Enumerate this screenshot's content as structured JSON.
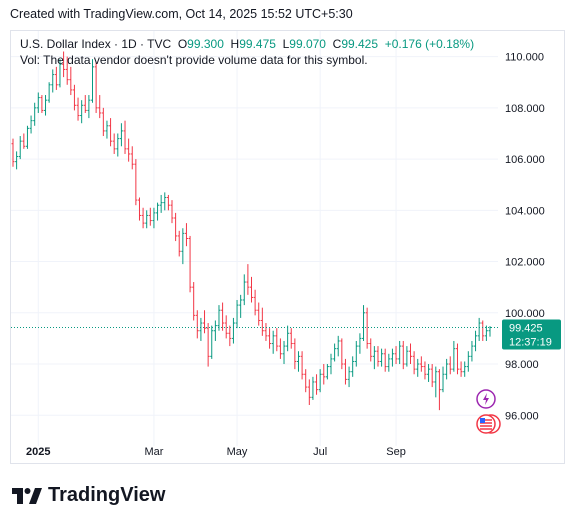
{
  "caption": "Created with TradingView.com, Oct 14, 2025 15:52 UTC+5:30",
  "legend": {
    "symbol": "U.S. Dollar Index · 1D · TVC",
    "o_label": "O",
    "o_value": "99.300",
    "h_label": "H",
    "h_value": "99.475",
    "l_label": "L",
    "l_value": "99.070",
    "c_label": "C",
    "c_value": "99.425",
    "change": "+0.176 (+0.18%)",
    "vol_note": "Vol: The data vendor doesn't provide volume data for this symbol."
  },
  "price_tag": {
    "price": "99.425",
    "countdown": "12:37:19"
  },
  "watermark": {
    "text": "TradingView"
  },
  "icons": [
    "flash-icon",
    "us-flag-icon"
  ],
  "colors": {
    "up": "#089981",
    "down": "#f23645",
    "price_tag": "#089981",
    "grid": "#f0f3fa"
  },
  "chart_data": {
    "type": "ohlc",
    "title": "U.S. Dollar Index · 1D · TVC",
    "ylim": [
      94.8,
      111.0
    ],
    "y_ticks": [
      "96.000",
      "98.000",
      "100.000",
      "102.000",
      "104.000",
      "106.000",
      "108.000",
      "110.000"
    ],
    "x_ticks": [
      "2025",
      "Mar",
      "May",
      "Jul",
      "Sep"
    ],
    "grid": true,
    "last_price": 99.425,
    "series": [
      {
        "bars": [
          {
            "o": 106.6,
            "h": 106.8,
            "l": 105.7,
            "c": 105.9
          },
          {
            "o": 105.9,
            "h": 106.3,
            "l": 105.6,
            "c": 106.1
          },
          {
            "o": 106.1,
            "h": 106.9,
            "l": 106.0,
            "c": 106.7
          },
          {
            "o": 106.7,
            "h": 107.0,
            "l": 106.4,
            "c": 106.5
          },
          {
            "o": 106.5,
            "h": 107.3,
            "l": 106.4,
            "c": 107.2
          },
          {
            "o": 107.2,
            "h": 107.7,
            "l": 107.0,
            "c": 107.5
          },
          {
            "o": 107.5,
            "h": 108.2,
            "l": 107.3,
            "c": 108.0
          },
          {
            "o": 108.0,
            "h": 108.6,
            "l": 107.8,
            "c": 108.4
          },
          {
            "o": 108.4,
            "h": 108.5,
            "l": 107.8,
            "c": 107.9
          },
          {
            "o": 107.9,
            "h": 108.5,
            "l": 107.7,
            "c": 108.3
          },
          {
            "o": 108.3,
            "h": 109.0,
            "l": 108.2,
            "c": 108.9
          },
          {
            "o": 108.9,
            "h": 109.5,
            "l": 108.6,
            "c": 109.3
          },
          {
            "o": 109.3,
            "h": 109.6,
            "l": 108.7,
            "c": 108.9
          },
          {
            "o": 108.9,
            "h": 109.9,
            "l": 108.8,
            "c": 109.7
          },
          {
            "o": 109.7,
            "h": 110.2,
            "l": 109.2,
            "c": 109.5
          },
          {
            "o": 109.5,
            "h": 110.0,
            "l": 108.9,
            "c": 109.1
          },
          {
            "o": 109.1,
            "h": 109.6,
            "l": 108.5,
            "c": 108.7
          },
          {
            "o": 108.7,
            "h": 108.9,
            "l": 107.9,
            "c": 108.1
          },
          {
            "o": 108.1,
            "h": 108.4,
            "l": 107.5,
            "c": 107.7
          },
          {
            "o": 107.7,
            "h": 108.3,
            "l": 107.4,
            "c": 108.1
          },
          {
            "o": 108.1,
            "h": 108.5,
            "l": 107.8,
            "c": 107.9
          },
          {
            "o": 107.9,
            "h": 108.5,
            "l": 107.6,
            "c": 108.3
          },
          {
            "o": 108.3,
            "h": 109.9,
            "l": 108.2,
            "c": 109.6
          },
          {
            "o": 109.6,
            "h": 109.8,
            "l": 107.8,
            "c": 108.0
          },
          {
            "o": 108.0,
            "h": 108.5,
            "l": 107.6,
            "c": 107.8
          },
          {
            "o": 107.8,
            "h": 108.0,
            "l": 106.9,
            "c": 107.1
          },
          {
            "o": 107.1,
            "h": 107.5,
            "l": 106.8,
            "c": 107.3
          },
          {
            "o": 107.3,
            "h": 107.6,
            "l": 106.5,
            "c": 106.7
          },
          {
            "o": 106.7,
            "h": 107.0,
            "l": 106.2,
            "c": 106.4
          },
          {
            "o": 106.4,
            "h": 107.0,
            "l": 106.1,
            "c": 106.8
          },
          {
            "o": 106.8,
            "h": 107.4,
            "l": 106.5,
            "c": 107.1
          },
          {
            "o": 107.1,
            "h": 107.5,
            "l": 106.2,
            "c": 106.4
          },
          {
            "o": 106.4,
            "h": 106.8,
            "l": 105.9,
            "c": 106.2
          },
          {
            "o": 106.2,
            "h": 106.5,
            "l": 105.6,
            "c": 105.8
          },
          {
            "o": 105.8,
            "h": 106.0,
            "l": 104.2,
            "c": 104.4
          },
          {
            "o": 104.4,
            "h": 104.5,
            "l": 103.6,
            "c": 103.8
          },
          {
            "o": 103.8,
            "h": 104.1,
            "l": 103.3,
            "c": 103.5
          },
          {
            "o": 103.5,
            "h": 104.0,
            "l": 103.3,
            "c": 103.8
          },
          {
            "o": 103.8,
            "h": 104.1,
            "l": 103.4,
            "c": 103.6
          },
          {
            "o": 103.6,
            "h": 104.1,
            "l": 103.3,
            "c": 103.9
          },
          {
            "o": 103.9,
            "h": 104.3,
            "l": 103.6,
            "c": 104.2
          },
          {
            "o": 104.2,
            "h": 104.6,
            "l": 103.9,
            "c": 104.3
          },
          {
            "o": 104.3,
            "h": 104.7,
            "l": 104.0,
            "c": 104.5
          },
          {
            "o": 104.5,
            "h": 104.6,
            "l": 104.0,
            "c": 104.2
          },
          {
            "o": 104.2,
            "h": 104.4,
            "l": 103.5,
            "c": 103.7
          },
          {
            "o": 103.7,
            "h": 103.9,
            "l": 102.8,
            "c": 103.0
          },
          {
            "o": 103.0,
            "h": 103.2,
            "l": 102.2,
            "c": 102.4
          },
          {
            "o": 102.4,
            "h": 103.3,
            "l": 101.9,
            "c": 103.1
          },
          {
            "o": 103.1,
            "h": 103.5,
            "l": 102.6,
            "c": 102.9
          },
          {
            "o": 102.9,
            "h": 103.0,
            "l": 100.8,
            "c": 101.0
          },
          {
            "o": 101.0,
            "h": 101.2,
            "l": 99.7,
            "c": 99.9
          },
          {
            "o": 99.9,
            "h": 100.1,
            "l": 99.0,
            "c": 99.3
          },
          {
            "o": 99.3,
            "h": 99.8,
            "l": 98.9,
            "c": 99.6
          },
          {
            "o": 99.6,
            "h": 100.1,
            "l": 99.2,
            "c": 99.4
          },
          {
            "o": 99.4,
            "h": 99.6,
            "l": 97.9,
            "c": 98.3
          },
          {
            "o": 98.3,
            "h": 99.5,
            "l": 98.2,
            "c": 99.3
          },
          {
            "o": 99.3,
            "h": 99.7,
            "l": 98.9,
            "c": 99.5
          },
          {
            "o": 99.5,
            "h": 100.3,
            "l": 99.3,
            "c": 100.1
          },
          {
            "o": 100.1,
            "h": 100.4,
            "l": 99.3,
            "c": 99.6
          },
          {
            "o": 99.6,
            "h": 99.9,
            "l": 99.0,
            "c": 99.2
          },
          {
            "o": 99.2,
            "h": 99.5,
            "l": 98.7,
            "c": 99.0
          },
          {
            "o": 99.0,
            "h": 99.8,
            "l": 98.8,
            "c": 99.6
          },
          {
            "o": 99.6,
            "h": 100.5,
            "l": 99.4,
            "c": 100.3
          },
          {
            "o": 100.3,
            "h": 100.7,
            "l": 99.8,
            "c": 100.5
          },
          {
            "o": 100.5,
            "h": 101.5,
            "l": 100.3,
            "c": 101.2
          },
          {
            "o": 101.2,
            "h": 101.9,
            "l": 100.7,
            "c": 101.0
          },
          {
            "o": 101.0,
            "h": 101.4,
            "l": 100.4,
            "c": 100.6
          },
          {
            "o": 100.6,
            "h": 100.9,
            "l": 99.9,
            "c": 100.1
          },
          {
            "o": 100.1,
            "h": 100.4,
            "l": 99.5,
            "c": 99.7
          },
          {
            "o": 99.7,
            "h": 100.2,
            "l": 99.1,
            "c": 99.3
          },
          {
            "o": 99.3,
            "h": 99.6,
            "l": 98.9,
            "c": 99.1
          },
          {
            "o": 99.1,
            "h": 99.4,
            "l": 98.6,
            "c": 98.8
          },
          {
            "o": 98.8,
            "h": 99.3,
            "l": 98.4,
            "c": 99.1
          },
          {
            "o": 99.1,
            "h": 99.4,
            "l": 98.5,
            "c": 98.7
          },
          {
            "o": 98.7,
            "h": 99.0,
            "l": 98.2,
            "c": 98.4
          },
          {
            "o": 98.4,
            "h": 98.9,
            "l": 98.0,
            "c": 98.7
          },
          {
            "o": 98.7,
            "h": 99.5,
            "l": 98.5,
            "c": 99.2
          },
          {
            "o": 99.2,
            "h": 99.4,
            "l": 98.6,
            "c": 98.8
          },
          {
            "o": 98.8,
            "h": 99.0,
            "l": 97.8,
            "c": 98.1
          },
          {
            "o": 98.1,
            "h": 98.5,
            "l": 97.7,
            "c": 98.3
          },
          {
            "o": 98.3,
            "h": 98.5,
            "l": 97.4,
            "c": 97.6
          },
          {
            "o": 97.6,
            "h": 97.8,
            "l": 96.9,
            "c": 97.1
          },
          {
            "o": 97.1,
            "h": 97.4,
            "l": 96.4,
            "c": 96.7
          },
          {
            "o": 96.7,
            "h": 97.5,
            "l": 96.6,
            "c": 97.3
          },
          {
            "o": 97.3,
            "h": 97.6,
            "l": 96.8,
            "c": 97.0
          },
          {
            "o": 97.0,
            "h": 97.8,
            "l": 96.9,
            "c": 97.6
          },
          {
            "o": 97.6,
            "h": 98.0,
            "l": 97.2,
            "c": 97.5
          },
          {
            "o": 97.5,
            "h": 98.0,
            "l": 97.4,
            "c": 97.9
          },
          {
            "o": 97.9,
            "h": 98.4,
            "l": 97.6,
            "c": 98.2
          },
          {
            "o": 98.2,
            "h": 98.8,
            "l": 98.1,
            "c": 98.6
          },
          {
            "o": 98.6,
            "h": 99.1,
            "l": 98.3,
            "c": 98.9
          },
          {
            "o": 98.9,
            "h": 99.0,
            "l": 97.8,
            "c": 98.0
          },
          {
            "o": 98.0,
            "h": 98.2,
            "l": 97.2,
            "c": 97.4
          },
          {
            "o": 97.4,
            "h": 97.9,
            "l": 97.1,
            "c": 97.7
          },
          {
            "o": 97.7,
            "h": 98.3,
            "l": 97.5,
            "c": 98.1
          },
          {
            "o": 98.1,
            "h": 98.9,
            "l": 97.9,
            "c": 98.7
          },
          {
            "o": 98.7,
            "h": 99.2,
            "l": 98.4,
            "c": 99.0
          },
          {
            "o": 99.0,
            "h": 100.3,
            "l": 98.9,
            "c": 100.0
          },
          {
            "o": 100.0,
            "h": 100.2,
            "l": 98.6,
            "c": 98.8
          },
          {
            "o": 98.8,
            "h": 99.0,
            "l": 98.1,
            "c": 98.3
          },
          {
            "o": 98.3,
            "h": 98.7,
            "l": 97.8,
            "c": 98.5
          },
          {
            "o": 98.5,
            "h": 98.7,
            "l": 97.9,
            "c": 98.1
          },
          {
            "o": 98.1,
            "h": 98.6,
            "l": 97.9,
            "c": 98.4
          },
          {
            "o": 98.4,
            "h": 98.6,
            "l": 97.7,
            "c": 97.9
          },
          {
            "o": 97.9,
            "h": 98.4,
            "l": 97.7,
            "c": 98.2
          },
          {
            "o": 98.2,
            "h": 98.6,
            "l": 97.9,
            "c": 98.4
          },
          {
            "o": 98.4,
            "h": 98.7,
            "l": 98.0,
            "c": 98.2
          },
          {
            "o": 98.2,
            "h": 98.9,
            "l": 98.0,
            "c": 98.7
          },
          {
            "o": 98.7,
            "h": 98.9,
            "l": 97.8,
            "c": 98.0
          },
          {
            "o": 98.0,
            "h": 98.7,
            "l": 97.9,
            "c": 98.5
          },
          {
            "o": 98.5,
            "h": 98.8,
            "l": 98.0,
            "c": 98.3
          },
          {
            "o": 98.3,
            "h": 98.5,
            "l": 97.6,
            "c": 97.8
          },
          {
            "o": 97.8,
            "h": 98.2,
            "l": 97.5,
            "c": 98.0
          },
          {
            "o": 98.0,
            "h": 98.3,
            "l": 97.7,
            "c": 97.9
          },
          {
            "o": 97.9,
            "h": 98.1,
            "l": 97.4,
            "c": 97.6
          },
          {
            "o": 97.6,
            "h": 98.0,
            "l": 97.3,
            "c": 97.8
          },
          {
            "o": 97.8,
            "h": 98.0,
            "l": 97.1,
            "c": 97.3
          },
          {
            "o": 97.3,
            "h": 97.9,
            "l": 96.7,
            "c": 97.7
          },
          {
            "o": 97.7,
            "h": 97.8,
            "l": 96.2,
            "c": 97.0
          },
          {
            "o": 97.0,
            "h": 97.9,
            "l": 96.9,
            "c": 97.6
          },
          {
            "o": 97.6,
            "h": 98.2,
            "l": 97.4,
            "c": 98.0
          },
          {
            "o": 98.0,
            "h": 98.3,
            "l": 97.6,
            "c": 97.8
          },
          {
            "o": 97.8,
            "h": 98.9,
            "l": 97.7,
            "c": 98.6
          },
          {
            "o": 98.6,
            "h": 98.8,
            "l": 97.6,
            "c": 97.8
          },
          {
            "o": 97.8,
            "h": 98.1,
            "l": 97.5,
            "c": 97.7
          },
          {
            "o": 97.7,
            "h": 98.1,
            "l": 97.5,
            "c": 97.9
          },
          {
            "o": 97.9,
            "h": 98.5,
            "l": 97.7,
            "c": 98.3
          },
          {
            "o": 98.3,
            "h": 98.9,
            "l": 98.1,
            "c": 98.7
          },
          {
            "o": 98.7,
            "h": 99.3,
            "l": 98.5,
            "c": 99.1
          },
          {
            "o": 99.1,
            "h": 99.8,
            "l": 98.9,
            "c": 99.6
          },
          {
            "o": 99.6,
            "h": 99.7,
            "l": 98.9,
            "c": 99.1
          },
          {
            "o": 99.1,
            "h": 99.5,
            "l": 98.9,
            "c": 99.3
          },
          {
            "o": 99.3,
            "h": 99.48,
            "l": 99.07,
            "c": 99.425
          }
        ]
      }
    ]
  }
}
